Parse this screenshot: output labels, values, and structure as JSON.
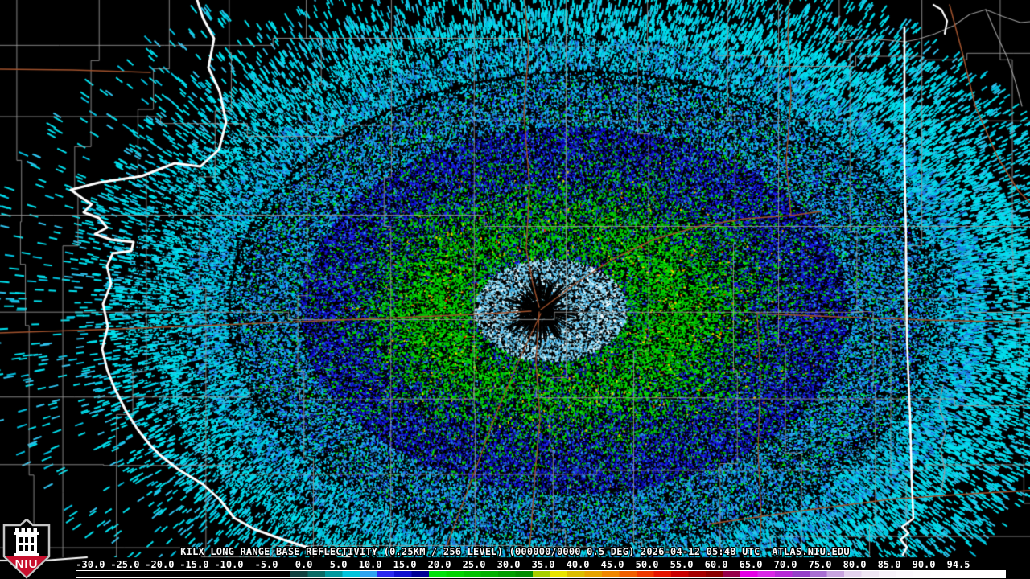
{
  "caption": {
    "text": "KILX LONG RANGE BASE REFLECTIVITY (0.25KM / 256 LEVEL) (000000/0000 0.5 DEG) 2026-04-12 05:48 UTC  ATLAS.NIU.EDU",
    "station": "KILX",
    "product": "LONG RANGE BASE REFLECTIVITY",
    "resolution": "0.25KM / 256 LEVEL",
    "volume": "000000/0000",
    "elevation": "0.5 DEG",
    "timestamp": "2026-04-12 05:48 UTC",
    "source": "ATLAS.NIU.EDU"
  },
  "colorbar": {
    "labels": [
      "-30.0",
      "-25.0",
      "-20.0",
      "-15.0",
      "-10.0",
      "-5.0",
      "0.0",
      "5.0",
      "10.0",
      "15.0",
      "20.0",
      "25.0",
      "30.0",
      "35.0",
      "40.0",
      "45.0",
      "50.0",
      "55.0",
      "60.0",
      "65.0",
      "70.0",
      "75.0",
      "80.0",
      "85.0",
      "90.0",
      "94.5"
    ],
    "palette": [
      [
        0,
        "#12403f"
      ],
      [
        2.5,
        "#0b6b66"
      ],
      [
        5,
        "#00999f"
      ],
      [
        7.5,
        "#00c4dc"
      ],
      [
        10,
        "#2fa4f0"
      ],
      [
        12.5,
        "#2a2af0"
      ],
      [
        15,
        "#1111cf"
      ],
      [
        17.5,
        "#000096"
      ],
      [
        20,
        "#00e20c"
      ],
      [
        22.5,
        "#00d400"
      ],
      [
        25,
        "#00c300"
      ],
      [
        27.5,
        "#00b100"
      ],
      [
        30,
        "#009f00"
      ],
      [
        32.5,
        "#008d00"
      ],
      [
        35,
        "#a6cf00"
      ],
      [
        37.5,
        "#e8e400"
      ],
      [
        40,
        "#dcbe00"
      ],
      [
        42.5,
        "#e6a400"
      ],
      [
        45,
        "#f08800"
      ],
      [
        47.5,
        "#f06000"
      ],
      [
        50,
        "#ee3a00"
      ],
      [
        52.5,
        "#e51600"
      ],
      [
        55,
        "#c90000"
      ],
      [
        57.5,
        "#a50000"
      ],
      [
        60,
        "#8a0000"
      ],
      [
        62.5,
        "#96004b"
      ],
      [
        65,
        "#e400e4"
      ],
      [
        67.5,
        "#d928e6"
      ],
      [
        70,
        "#b62ad6"
      ],
      [
        72.5,
        "#9440c8"
      ],
      [
        75,
        "#a86ed2"
      ],
      [
        77.5,
        "#c9a4e0"
      ],
      [
        80,
        "#e4d2ee"
      ],
      [
        82.5,
        "#efe6f4"
      ],
      [
        85,
        "#f7f2fa"
      ],
      [
        87.5,
        "#fbf8fd"
      ],
      [
        90,
        "#fdfcfe"
      ],
      [
        92.5,
        "#fefeff"
      ],
      [
        94.5,
        "#ffffff"
      ]
    ]
  },
  "logo": {
    "text": "NIU",
    "red": "#c8102e"
  },
  "map": {
    "background": "#000000",
    "state_border_color": "#ffffff",
    "county_line_color": "#9b9b9b",
    "river_color": "#9b9b9b",
    "road_color": "#a0522d",
    "echo_palettes": {
      "halo": [
        "#8ed8f2",
        "#8ed8f2",
        "#8ed8f2",
        "#5fc6ec",
        "#5fc6ec",
        "#b6e9f8",
        "#39b0e6",
        "#c8f0fa",
        "#ffffff",
        "#35a8e8"
      ],
      "green": [
        "#00d900",
        "#00d900",
        "#00c400",
        "#00c400",
        "#12e812",
        "#00ad00",
        "#00d900"
      ],
      "yellow": [
        "#e8e000",
        "#e3c800",
        "#edb100"
      ],
      "hot": [
        "#f26600",
        "#e41400"
      ],
      "blue": [
        "#1b1be8",
        "#1b1be8",
        "#0d0dd0",
        "#0d0dd0",
        "#0000a2",
        "#2d2df4",
        "#1f7ce8",
        "#2e9bf0",
        "#000082",
        "#1b1be8"
      ],
      "azure": [
        "#1f7ce8",
        "#1f7ce8",
        "#2e9bf0",
        "#2e9bf0",
        "#1b1be8",
        "#00b4e4",
        "#00b4e4",
        "#00d8e8",
        "#00dc00",
        "#2fc3ee"
      ],
      "cyan": [
        "#00d8e8",
        "#00d8e8",
        "#2fc3ee",
        "#00b0d8",
        "#1f7ce8"
      ],
      "outer": [
        "#00e0ee",
        "#00e0ee",
        "#00e0ee",
        "#00c2e2",
        "#2fc3ee"
      ]
    }
  }
}
